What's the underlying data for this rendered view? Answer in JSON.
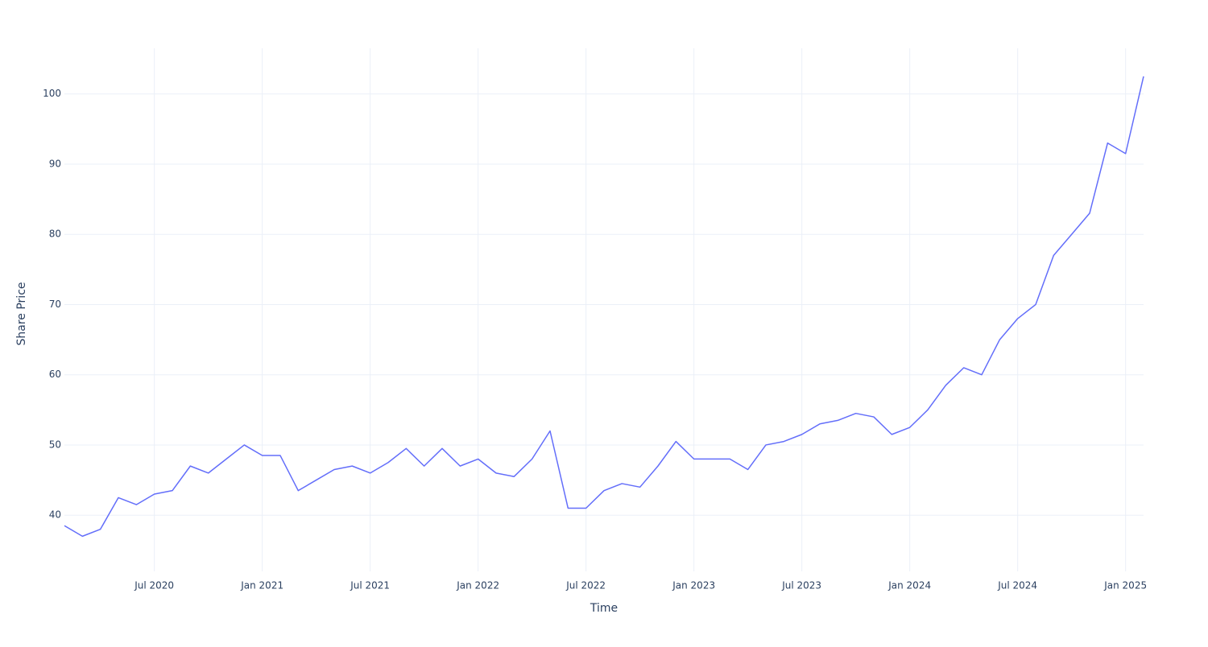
{
  "chart_data": {
    "type": "line",
    "x_label": "Time",
    "y_label": "Share Price",
    "x": [
      "2020-02",
      "2020-03",
      "2020-04",
      "2020-05",
      "2020-06",
      "2020-07",
      "2020-08",
      "2020-09",
      "2020-10",
      "2020-11",
      "2020-12",
      "2021-01",
      "2021-02",
      "2021-03",
      "2021-04",
      "2021-05",
      "2021-06",
      "2021-07",
      "2021-08",
      "2021-09",
      "2021-10",
      "2021-11",
      "2021-12",
      "2022-01",
      "2022-02",
      "2022-03",
      "2022-04",
      "2022-05",
      "2022-06",
      "2022-07",
      "2022-08",
      "2022-09",
      "2022-10",
      "2022-11",
      "2022-12",
      "2023-01",
      "2023-02",
      "2023-03",
      "2023-04",
      "2023-05",
      "2023-06",
      "2023-07",
      "2023-08",
      "2023-09",
      "2023-10",
      "2023-11",
      "2023-12",
      "2024-01",
      "2024-02",
      "2024-03",
      "2024-04",
      "2024-05",
      "2024-06",
      "2024-07",
      "2024-08",
      "2024-09",
      "2024-10",
      "2024-11",
      "2024-12",
      "2025-01",
      "2025-02"
    ],
    "series": [
      {
        "color": "#636efa",
        "values": [
          38.5,
          37,
          38,
          42.5,
          41.5,
          43,
          43.5,
          47,
          46,
          48,
          50,
          48.5,
          48.5,
          43.5,
          45,
          46.5,
          47,
          46,
          47.5,
          49.5,
          47,
          49.5,
          47,
          48,
          46,
          45.5,
          48,
          52,
          41,
          41,
          43.5,
          44.5,
          44,
          47,
          50.5,
          48,
          48,
          48,
          46.5,
          50,
          50.5,
          51.5,
          53,
          53.5,
          54.5,
          54,
          51.5,
          52.5,
          55,
          58.5,
          61,
          60,
          65,
          68,
          70,
          77,
          80,
          83,
          93,
          91.5,
          102.5
        ]
      }
    ],
    "xlim": [
      "2020-02",
      "2025-02"
    ],
    "xticks": [
      {
        "value": "2020-07",
        "label": "Jul 2020"
      },
      {
        "value": "2021-01",
        "label": "Jan 2021"
      },
      {
        "value": "2021-07",
        "label": "Jul 2021"
      },
      {
        "value": "2022-01",
        "label": "Jan 2022"
      },
      {
        "value": "2022-07",
        "label": "Jul 2022"
      },
      {
        "value": "2023-01",
        "label": "Jan 2023"
      },
      {
        "value": "2023-07",
        "label": "Jul 2023"
      },
      {
        "value": "2024-01",
        "label": "Jan 2024"
      },
      {
        "value": "2024-07",
        "label": "Jul 2024"
      },
      {
        "value": "2025-01",
        "label": "Jan 2025"
      }
    ],
    "ylim": [
      32,
      106.5
    ],
    "yticks": [
      40,
      50,
      60,
      70,
      80,
      90,
      100
    ],
    "grid": true
  }
}
